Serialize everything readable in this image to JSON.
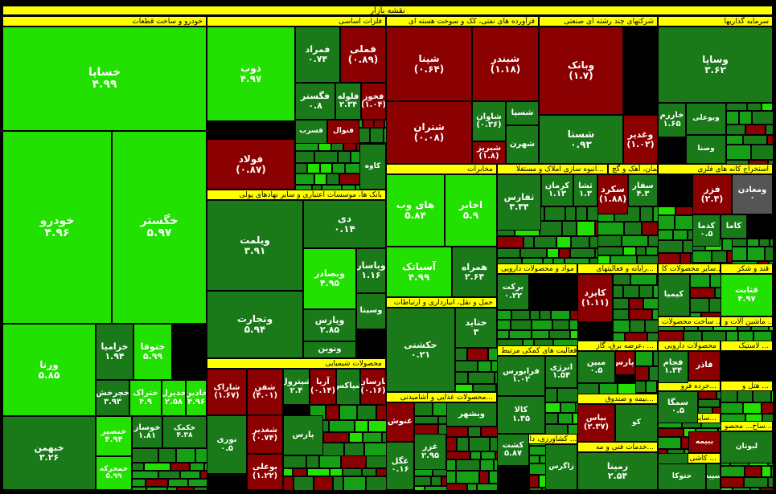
{
  "market_title": "نقشه بازار",
  "colors": {
    "bright": "#22e000",
    "mid": "#16a016",
    "dark": "#1a7a1a",
    "red": "#8b0000",
    "gray": "#555555",
    "yellow": "#ffff00"
  },
  "sectors": [
    {
      "id": "auto",
      "title": "خودرو و ساخت قطعات",
      "align": "rtl"
    },
    {
      "id": "metals",
      "title": "فلزات اساسی",
      "align": "rtl"
    },
    {
      "id": "refinery",
      "title": "فرآورده های نفتی، کک و سوخت هسته ای",
      "align": "rtl"
    },
    {
      "id": "multi",
      "title": "شرکتهای چند رشته ای صنعتی",
      "align": "rtl"
    },
    {
      "id": "invest",
      "title": "سرمایه گذاریها",
      "align": "rtl"
    },
    {
      "id": "banks",
      "title": "بانک ها، موسسات اعتباری و سایر نهادهای پولی",
      "align": "rtl"
    },
    {
      "id": "telecom",
      "title": "مخابرات",
      "align": "rtl"
    },
    {
      "id": "realestate",
      "title": "انبوه سازی املاک و مستغلا...",
      "align": "rtl"
    },
    {
      "id": "cement",
      "title": "سیمان، آهک و گچ",
      "align": "rtl"
    },
    {
      "id": "mining",
      "title": "استخراج کانه های فلزی",
      "align": "rtl"
    },
    {
      "id": "pharma",
      "title": "مواد و محصولات دارویی",
      "align": "rtl"
    },
    {
      "id": "computer",
      "title": "رایانه و فعالیتهای...",
      "align": "rtl"
    },
    {
      "id": "otherproducts",
      "title": "سایر محصولات کا...",
      "align": "rtl"
    },
    {
      "id": "sugar",
      "title": "قند و شکر",
      "align": "rtl"
    },
    {
      "id": "transport",
      "title": "حمل و نقل، انبارداری و ارتباطات",
      "align": "rtl"
    },
    {
      "id": "machinery",
      "title": "ماشین آلات و ...",
      "align": "rtl"
    },
    {
      "id": "electric",
      "title": "ساخت محصولات ...",
      "align": "rtl"
    },
    {
      "id": "engineering",
      "title": "عرضه برق، گاز، ...",
      "align": "rtl"
    },
    {
      "id": "aux",
      "title": "فعالیت های کمکی مرتبط...",
      "align": "rtl"
    },
    {
      "id": "chemical",
      "title": "محصولات شیمیایی",
      "align": "rtl"
    },
    {
      "id": "food",
      "title": "محصولات غذایی و آشامیدنی...",
      "align": "rtl"
    },
    {
      "id": "pharma2",
      "title": "محصولات دارویی",
      "align": "rtl"
    },
    {
      "id": "insurance",
      "title": "بیمه و صندوق...",
      "align": "rtl"
    },
    {
      "id": "agri",
      "title": "کشاورزی، دامپروری و ...",
      "align": "rtl"
    },
    {
      "id": "plastic",
      "title": "لاستیک ...",
      "align": "rtl"
    },
    {
      "id": "retail",
      "title": "خرده فرو...",
      "align": "rtl"
    },
    {
      "id": "hotel",
      "title": "هتل و ...",
      "align": "rtl"
    },
    {
      "id": "services",
      "title": "خدمات فنی و مه...",
      "align": "rtl"
    },
    {
      "id": "misc1",
      "title": "سایر و...",
      "align": "rtl"
    },
    {
      "id": "textile",
      "title": "کاشی ...",
      "align": "rtl"
    },
    {
      "id": "misc2",
      "title": "ساخ... محصو...",
      "align": "rtl"
    }
  ],
  "tiles": [
    {
      "n": "خساپا",
      "v": "۴.۹۹",
      "c": "bright",
      "fs": 14
    },
    {
      "n": "خودرو",
      "v": "۴.۹۶",
      "c": "bright",
      "fs": 14
    },
    {
      "n": "خگستر",
      "v": "۵.۹۷",
      "c": "bright",
      "fs": 14
    },
    {
      "n": "ورنا",
      "v": "۵.۸۵",
      "c": "bright",
      "fs": 12
    },
    {
      "n": "خزامیا",
      "v": "۱.۹۴",
      "c": "dark",
      "fs": 11
    },
    {
      "n": "ختوقا",
      "v": "۵.۹۹",
      "c": "bright",
      "fs": 11
    },
    {
      "n": "خبهمن",
      "v": "۳.۲۶",
      "c": "dark",
      "fs": 11
    },
    {
      "n": "خچرخش",
      "v": "۳.۹۳",
      "c": "dark",
      "fs": 10
    },
    {
      "n": "ختراک",
      "v": "۴.۹",
      "c": "bright",
      "fs": 10
    },
    {
      "n": "خدیزل",
      "v": "۲.۵۸",
      "c": "bright",
      "fs": 10
    },
    {
      "n": "خاذین",
      "v": "۴.۹۶",
      "c": "bright",
      "fs": 10
    },
    {
      "n": "خنصیر",
      "v": "۴.۹۴",
      "c": "bright",
      "fs": 10
    },
    {
      "n": "خوساز",
      "v": "۱.۸۱",
      "c": "dark",
      "fs": 10
    },
    {
      "n": "خکمک",
      "v": "۴.۳۸",
      "c": "dark",
      "fs": 9
    },
    {
      "n": "خمحرکه",
      "v": "۵.۹۹",
      "c": "bright",
      "fs": 9
    },
    {
      "n": "ذوب",
      "v": "۴.۹۷",
      "c": "bright",
      "fs": 12
    },
    {
      "n": "فمراد",
      "v": "۰.۷۴",
      "c": "dark",
      "fs": 11
    },
    {
      "n": "فملی",
      "v": "(۰.۸۹)",
      "c": "red",
      "fs": 12
    },
    {
      "n": "فگستر",
      "v": "۰.۸",
      "c": "dark",
      "fs": 11
    },
    {
      "n": "فلوله",
      "v": "۲.۳۴",
      "c": "dark",
      "fs": 10
    },
    {
      "n": "فخوز",
      "v": "(۱.۰۴)",
      "c": "red",
      "fs": 10
    },
    {
      "n": "فولاد",
      "v": "(۰.۸۷)",
      "c": "red",
      "fs": 12
    },
    {
      "n": "فسرب",
      "v": "",
      "c": "dark",
      "fs": 9
    },
    {
      "n": "فنوال",
      "v": "",
      "c": "red",
      "fs": 9
    },
    {
      "n": "کاوه",
      "v": "",
      "c": "dark",
      "fs": 9
    },
    {
      "n": "شپنا",
      "v": "(۰.۶۴)",
      "c": "red",
      "fs": 12
    },
    {
      "n": "شبندر",
      "v": "(۱.۱۸)",
      "c": "red",
      "fs": 12
    },
    {
      "n": "شتران",
      "v": "(۰.۰۸)",
      "c": "red",
      "fs": 12
    },
    {
      "n": "شاوان",
      "v": "(۰.۳۶)",
      "c": "dark",
      "fs": 10
    },
    {
      "n": "شسپا",
      "v": "",
      "c": "dark",
      "fs": 10
    },
    {
      "n": "شبریز",
      "v": "(۱.۸)",
      "c": "red",
      "fs": 10
    },
    {
      "n": "شهرن",
      "v": "",
      "c": "dark",
      "fs": 10
    },
    {
      "n": "وبانک",
      "v": "(۱.۷)",
      "c": "red",
      "fs": 12
    },
    {
      "n": "شستا",
      "v": "۰.۹۳",
      "c": "dark",
      "fs": 12
    },
    {
      "n": "وغدیر",
      "v": "(۱.۰۲)",
      "c": "red",
      "fs": 11
    },
    {
      "n": "وساپا",
      "v": "۳.۶۲",
      "c": "dark",
      "fs": 12
    },
    {
      "n": "خارزم",
      "v": "۱.۶۵",
      "c": "dark",
      "fs": 10
    },
    {
      "n": "وبوعلی",
      "v": "",
      "c": "dark",
      "fs": 9
    },
    {
      "n": "وصنا",
      "v": "",
      "c": "dark",
      "fs": 9
    },
    {
      "n": "ویلمت",
      "v": "۳.۹۱",
      "c": "dark",
      "fs": 12
    },
    {
      "n": "دی",
      "v": "۰.۱۴",
      "c": "dark",
      "fs": 12
    },
    {
      "n": "وتجارت",
      "v": "۵.۹۴",
      "c": "dark",
      "fs": 12
    },
    {
      "n": "وبصادر",
      "v": "۴.۹۵",
      "c": "bright",
      "fs": 11
    },
    {
      "n": "وپاسار",
      "v": "۱.۱۶",
      "c": "dark",
      "fs": 11
    },
    {
      "n": "وپارس",
      "v": "۲.۸۵",
      "c": "dark",
      "fs": 11
    },
    {
      "n": "وسینا",
      "v": "",
      "c": "dark",
      "fs": 10
    },
    {
      "n": "ونوین",
      "v": "",
      "c": "dark",
      "fs": 10
    },
    {
      "n": "های وب",
      "v": "۵.۸۴",
      "c": "bright",
      "fs": 12
    },
    {
      "n": "اخابر",
      "v": "۵.۹",
      "c": "bright",
      "fs": 12
    },
    {
      "n": "آسیاتک",
      "v": "۴.۹۹",
      "c": "bright",
      "fs": 12
    },
    {
      "n": "همراه",
      "v": "۲.۶۴",
      "c": "dark",
      "fs": 11
    },
    {
      "n": "ثفارس",
      "v": "۳.۳۴",
      "c": "dark",
      "fs": 11
    },
    {
      "n": "کرمان",
      "v": "۱.۱۳",
      "c": "dark",
      "fs": 10
    },
    {
      "n": "ثشا",
      "v": "۱.۳",
      "c": "dark",
      "fs": 10
    },
    {
      "n": "سکرد",
      "v": "(۱.۸۸)",
      "c": "red",
      "fs": 11
    },
    {
      "n": "سفار",
      "v": "۴.۳",
      "c": "dark",
      "fs": 10
    },
    {
      "n": "فزر",
      "v": "(۲.۴)",
      "c": "red",
      "fs": 11
    },
    {
      "n": "ومعادن",
      "v": "۰",
      "c": "gray",
      "fs": 10
    },
    {
      "n": "کدما",
      "v": "۰.۵",
      "c": "dark",
      "fs": 10
    },
    {
      "n": "کاما",
      "v": "",
      "c": "dark",
      "fs": 10
    },
    {
      "n": "حکشتی",
      "v": "۰.۲۱",
      "c": "dark",
      "fs": 11
    },
    {
      "n": "حتاید",
      "v": "۳",
      "c": "dark",
      "fs": 11
    },
    {
      "n": "کایزد",
      "v": "(۱.۱۱)",
      "c": "red",
      "fs": 11
    },
    {
      "n": "برکت",
      "v": "۰.۲۲",
      "c": "dark",
      "fs": 10
    },
    {
      "n": "قثابت",
      "v": "۴.۹۷",
      "c": "bright",
      "fs": 10
    },
    {
      "n": "کیمیا",
      "v": "",
      "c": "dark",
      "fs": 10
    },
    {
      "n": "فرابورس",
      "v": "۱.۰۲",
      "c": "dark",
      "fs": 10
    },
    {
      "n": "انرژی",
      "v": "۱.۵۴",
      "c": "dark",
      "fs": 10
    },
    {
      "n": "کالا",
      "v": "۱.۳۵",
      "c": "dark",
      "fs": 10
    },
    {
      "n": "شاراک",
      "v": "(۱.۶۷)",
      "c": "red",
      "fs": 10
    },
    {
      "n": "شفن",
      "v": "(۴.۰۱)",
      "c": "red",
      "fs": 10
    },
    {
      "n": "شپترول",
      "v": "۲.۴",
      "c": "dark",
      "fs": 10
    },
    {
      "n": "آریا",
      "v": "(۰.۱۴)",
      "c": "red",
      "fs": 10
    },
    {
      "n": "شپاکس",
      "v": "",
      "c": "dark",
      "fs": 10
    },
    {
      "n": "پارسان",
      "v": "(۰.۱۶)",
      "c": "red",
      "fs": 10
    },
    {
      "n": "شغدیر",
      "v": "(۰.۷۴)",
      "c": "red",
      "fs": 10
    },
    {
      "n": "نوری",
      "v": "۰.۵",
      "c": "dark",
      "fs": 10
    },
    {
      "n": "بوعلی",
      "v": "(۱.۲۲)",
      "c": "red",
      "fs": 10
    },
    {
      "n": "پارس",
      "v": "",
      "c": "dark",
      "fs": 10
    },
    {
      "n": "غگل",
      "v": "۰.۱۶",
      "c": "dark",
      "fs": 10
    },
    {
      "n": "غزر",
      "v": "۲.۹۵",
      "c": "dark",
      "fs": 10
    },
    {
      "n": "وبشهر",
      "v": "",
      "c": "dark",
      "fs": 10
    },
    {
      "n": "غنوش",
      "v": "",
      "c": "red",
      "fs": 10
    },
    {
      "n": "مبین",
      "v": "۰.۵",
      "c": "dark",
      "fs": 10
    },
    {
      "n": "دپارس",
      "v": "",
      "c": "red",
      "fs": 10
    },
    {
      "n": "فجام",
      "v": "۱.۳۴",
      "c": "dark",
      "fs": 10
    },
    {
      "n": "فاذر",
      "v": "",
      "c": "red",
      "fs": 10
    },
    {
      "n": "سمگا",
      "v": "۰.۵",
      "c": "dark",
      "fs": 10
    },
    {
      "n": "کو",
      "v": "",
      "c": "dark",
      "fs": 9
    },
    {
      "n": "بپاس",
      "v": "(۲.۳۷)",
      "c": "red",
      "fs": 10
    },
    {
      "n": "رمپنا",
      "v": "۲.۵۴",
      "c": "dark",
      "fs": 11
    },
    {
      "n": "زاگرس",
      "v": "",
      "c": "dark",
      "fs": 9
    },
    {
      "n": "کشت",
      "v": "۵.۸۷",
      "c": "dark",
      "fs": 10
    },
    {
      "n": "ولساپا",
      "v": "",
      "c": "dark",
      "fs": 9
    },
    {
      "n": "ببیمه",
      "v": "",
      "c": "red",
      "fs": 9
    },
    {
      "n": "حتوکا",
      "v": "",
      "c": "dark",
      "fs": 9
    },
    {
      "n": "سپید",
      "v": "",
      "c": "dark",
      "fs": 9
    },
    {
      "n": "لبوتان",
      "v": "",
      "c": "dark",
      "fs": 9
    }
  ]
}
